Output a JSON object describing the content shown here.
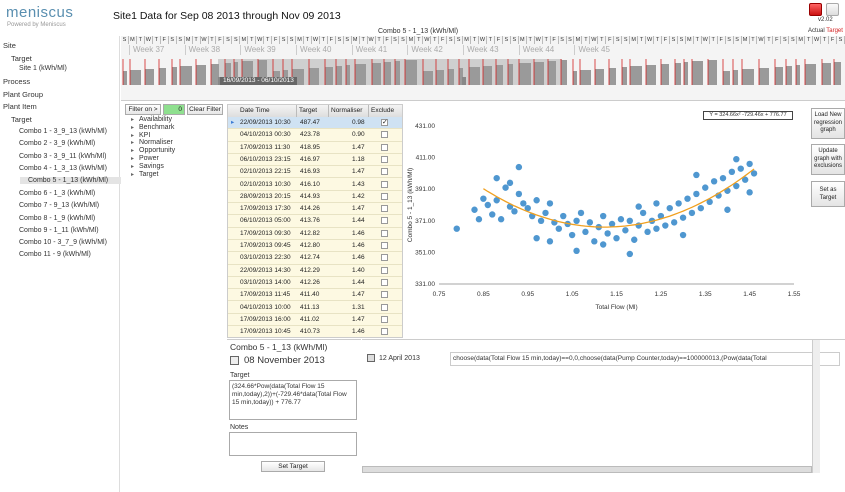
{
  "app": {
    "logo": "meniscus",
    "logo_sub": "Powered by Meniscus",
    "title": "Site1 Data for Sep 08 2013 through Nov 09 2013",
    "version": "v2.02",
    "legend_actual": "Actual",
    "legend_target": "Target",
    "combo_caption": "Combo 5 - 1_13 (kWh/Ml)"
  },
  "colors": {
    "accent": "#5a8fb0",
    "target_red": "#d32020",
    "scatter": "#4f97d0",
    "fit": "#f0a020",
    "grid_bg": "#fdf9e2"
  },
  "sidebar": {
    "items": [
      {
        "label": "Site",
        "level": 0,
        "expanded": true
      },
      {
        "label": "Target",
        "level": 1,
        "expanded": true
      },
      {
        "label": "Site 1 (kWh/Ml)",
        "level": 2
      },
      {
        "label": "Process",
        "level": 0
      },
      {
        "label": "Plant Group",
        "level": 0
      },
      {
        "label": "Plant Item",
        "level": 0,
        "expanded": true
      },
      {
        "label": "Target",
        "level": 1,
        "expanded": true
      },
      {
        "label": "Combo 1 - 3_9_13 (kWh/Ml)",
        "level": 2
      },
      {
        "label": "Combo 2 - 3_9 (kWh/Ml)",
        "level": 2
      },
      {
        "label": "Combo 3 - 3_9_11 (kWh/Ml)",
        "level": 2
      },
      {
        "label": "Combo 4 - 1_3_13 (kWh/Ml)",
        "level": 2
      },
      {
        "label": "Combo 5 - 1_13 (kWh/Ml)",
        "level": 2,
        "selected": true
      },
      {
        "label": "Combo 6 - 1_3 (kWh/Ml)",
        "level": 2
      },
      {
        "label": "Combo 7 - 9_13 (kWh/Ml)",
        "level": 2
      },
      {
        "label": "Combo 8 - 1_9 (kWh/Ml)",
        "level": 2
      },
      {
        "label": "Combo 9 - 1_11 (kWh/Ml)",
        "level": 2
      },
      {
        "label": "Combo 10 - 3_7_9 (kWh/Ml)",
        "level": 2
      },
      {
        "label": "Combo 11 - 9 (kWh/Ml)",
        "level": 2
      }
    ]
  },
  "timeline": {
    "days": [
      "S",
      "M",
      "T",
      "W",
      "T",
      "F",
      "S",
      "S",
      "M",
      "T",
      "W",
      "T",
      "F",
      "S",
      "S",
      "M",
      "T",
      "W",
      "T",
      "F",
      "S",
      "S",
      "M",
      "T",
      "W",
      "T",
      "F",
      "S",
      "S",
      "M",
      "T",
      "W",
      "T",
      "F",
      "S",
      "S",
      "M",
      "T",
      "W",
      "T",
      "F",
      "S",
      "S",
      "M",
      "T",
      "W",
      "T",
      "F",
      "S",
      "S",
      "M",
      "T",
      "W",
      "T",
      "F",
      "S",
      "S",
      "M",
      "T",
      "W",
      "T",
      "F",
      "S",
      "S",
      "M",
      "T",
      "W",
      "T",
      "F",
      "S",
      "S",
      "M",
      "T",
      "W",
      "T",
      "F",
      "S",
      "S",
      "M",
      "T",
      "W",
      "T",
      "F",
      "S",
      "S",
      "M",
      "T",
      "W",
      "T",
      "F",
      "S"
    ],
    "weeks": [
      "Week 37",
      "Week 38",
      "Week 39",
      "Week 40",
      "Week 41",
      "Week 42",
      "Week 43",
      "Week 44",
      "Week 45"
    ],
    "range_label": "16/09/2013 - 06/10/2013"
  },
  "filter": {
    "filter_on_label": "Filter on >",
    "count": "0",
    "clear_label": "Clear Filter",
    "items": [
      "Availability",
      "Benchmark",
      "KPI",
      "Normaliser",
      "Opportunity",
      "Power",
      "Savings",
      "Target"
    ]
  },
  "grid": {
    "headers": [
      "Date Time",
      "Target",
      "Normaliser",
      "Exclude"
    ],
    "rows": [
      {
        "dt": "22/09/2013 10:30",
        "target": "487.47",
        "norm": "0.98",
        "excl": true,
        "selected": true
      },
      {
        "dt": "04/10/2013 00:30",
        "target": "423.78",
        "norm": "0.90",
        "excl": false
      },
      {
        "dt": "17/09/2013 11:30",
        "target": "418.95",
        "norm": "1.47",
        "excl": false
      },
      {
        "dt": "06/10/2013 23:15",
        "target": "416.97",
        "norm": "1.18",
        "excl": false
      },
      {
        "dt": "02/10/2013 22:15",
        "target": "416.93",
        "norm": "1.47",
        "excl": false
      },
      {
        "dt": "02/10/2013 10:30",
        "target": "416.10",
        "norm": "1.43",
        "excl": false
      },
      {
        "dt": "28/09/2013 20:15",
        "target": "414.93",
        "norm": "1.42",
        "excl": false
      },
      {
        "dt": "17/09/2013 17:30",
        "target": "414.26",
        "norm": "1.47",
        "excl": false
      },
      {
        "dt": "06/10/2013 05:00",
        "target": "413.76",
        "norm": "1.44",
        "excl": false
      },
      {
        "dt": "17/09/2013 09:30",
        "target": "412.82",
        "norm": "1.46",
        "excl": false
      },
      {
        "dt": "17/09/2013 09:45",
        "target": "412.80",
        "norm": "1.46",
        "excl": false
      },
      {
        "dt": "03/10/2013 22:30",
        "target": "412.74",
        "norm": "1.46",
        "excl": false
      },
      {
        "dt": "22/09/2013 14:30",
        "target": "412.29",
        "norm": "1.40",
        "excl": false
      },
      {
        "dt": "03/10/2013 14:00",
        "target": "412.26",
        "norm": "1.44",
        "excl": false
      },
      {
        "dt": "17/09/2013 11:45",
        "target": "411.40",
        "norm": "1.47",
        "excl": false
      },
      {
        "dt": "04/10/2013 10:00",
        "target": "411.13",
        "norm": "1.31",
        "excl": false
      },
      {
        "dt": "17/09/2013 16:00",
        "target": "411.02",
        "norm": "1.47",
        "excl": false
      },
      {
        "dt": "17/09/2013 10:45",
        "target": "410.73",
        "norm": "1.46",
        "excl": false
      }
    ]
  },
  "chart_data": {
    "type": "scatter",
    "xlabel": "Total Flow (Ml)",
    "ylabel": "Combo 5 - 1_13 (kWh/Ml)",
    "xlim": [
      0.75,
      1.55
    ],
    "ylim": [
      331,
      431
    ],
    "xticks": [
      "0.75",
      "0.85",
      "0.95",
      "1.05",
      "1.15",
      "1.25",
      "1.35",
      "1.45",
      "1.55"
    ],
    "yticks": [
      "431.00",
      "411.00",
      "391.00",
      "371.00",
      "351.00",
      "331.00"
    ],
    "fit": {
      "label": "Y = 324.66x² -729.46x + 776.77",
      "a": 324.66,
      "b": -729.46,
      "c": 776.77,
      "x_range": [
        0.85,
        1.46
      ]
    },
    "points_note_omitted": true,
    "series": [
      {
        "values": [
          [
            0.79,
            366
          ],
          [
            0.83,
            378
          ],
          [
            0.84,
            372
          ],
          [
            0.85,
            385
          ],
          [
            0.86,
            381
          ],
          [
            0.87,
            375
          ],
          [
            0.88,
            384
          ],
          [
            0.89,
            372
          ],
          [
            0.9,
            392
          ],
          [
            0.91,
            380
          ],
          [
            0.92,
            377
          ],
          [
            0.93,
            388
          ],
          [
            0.94,
            382
          ],
          [
            0.95,
            379
          ],
          [
            0.96,
            374
          ],
          [
            0.97,
            384
          ],
          [
            0.98,
            371
          ],
          [
            0.99,
            376
          ],
          [
            1.0,
            382
          ],
          [
            1.01,
            370
          ],
          [
            1.02,
            366
          ],
          [
            1.03,
            374
          ],
          [
            1.04,
            369
          ],
          [
            1.05,
            362
          ],
          [
            1.06,
            371
          ],
          [
            1.07,
            376
          ],
          [
            1.08,
            364
          ],
          [
            1.09,
            370
          ],
          [
            1.1,
            358
          ],
          [
            1.11,
            367
          ],
          [
            1.12,
            374
          ],
          [
            1.13,
            363
          ],
          [
            1.14,
            369
          ],
          [
            1.15,
            360
          ],
          [
            1.16,
            372
          ],
          [
            1.17,
            365
          ],
          [
            1.18,
            371
          ],
          [
            1.19,
            359
          ],
          [
            1.2,
            368
          ],
          [
            1.21,
            376
          ],
          [
            1.22,
            364
          ],
          [
            1.23,
            371
          ],
          [
            1.24,
            366
          ],
          [
            1.25,
            374
          ],
          [
            1.26,
            368
          ],
          [
            1.27,
            379
          ],
          [
            1.28,
            370
          ],
          [
            1.29,
            382
          ],
          [
            1.3,
            373
          ],
          [
            1.31,
            385
          ],
          [
            1.32,
            376
          ],
          [
            1.33,
            388
          ],
          [
            1.34,
            379
          ],
          [
            1.35,
            392
          ],
          [
            1.36,
            383
          ],
          [
            1.37,
            396
          ],
          [
            1.38,
            387
          ],
          [
            1.39,
            398
          ],
          [
            1.4,
            390
          ],
          [
            1.41,
            402
          ],
          [
            1.42,
            393
          ],
          [
            1.43,
            404
          ],
          [
            1.44,
            397
          ],
          [
            1.45,
            407
          ],
          [
            1.46,
            401
          ],
          [
            0.93,
            405
          ],
          [
            0.88,
            398
          ],
          [
            0.97,
            360
          ],
          [
            1.06,
            352
          ],
          [
            1.12,
            356
          ],
          [
            1.3,
            362
          ],
          [
            1.4,
            378
          ],
          [
            1.45,
            389
          ],
          [
            0.91,
            395
          ],
          [
            1.0,
            358
          ],
          [
            1.18,
            350
          ],
          [
            1.24,
            382
          ],
          [
            1.33,
            400
          ],
          [
            1.42,
            410
          ],
          [
            1.2,
            380
          ]
        ]
      }
    ]
  },
  "bottom_left": {
    "panel_title": "Combo 5 - 1_13 (kWh/Ml)",
    "date": "08 November 2013",
    "target_label": "Target",
    "target_value": "(324.66*Pow(data(Total Flow 15 min,today),2))+(-729.46*data(Total Flow 15 min,today)) + 776.77",
    "notes_label": "Notes",
    "notes_value": "",
    "set_target_label": "Set Target"
  },
  "bottom_right": {
    "date": "12 April 2013",
    "formula": "choose(data(Total Flow 15 min,today)==0,0,choose(data(Pump Counter,today)==100000013,(Pow(data(Total"
  },
  "right_buttons": [
    "Load New regression graph",
    "Update graph with exclusions",
    "Set as Target"
  ]
}
